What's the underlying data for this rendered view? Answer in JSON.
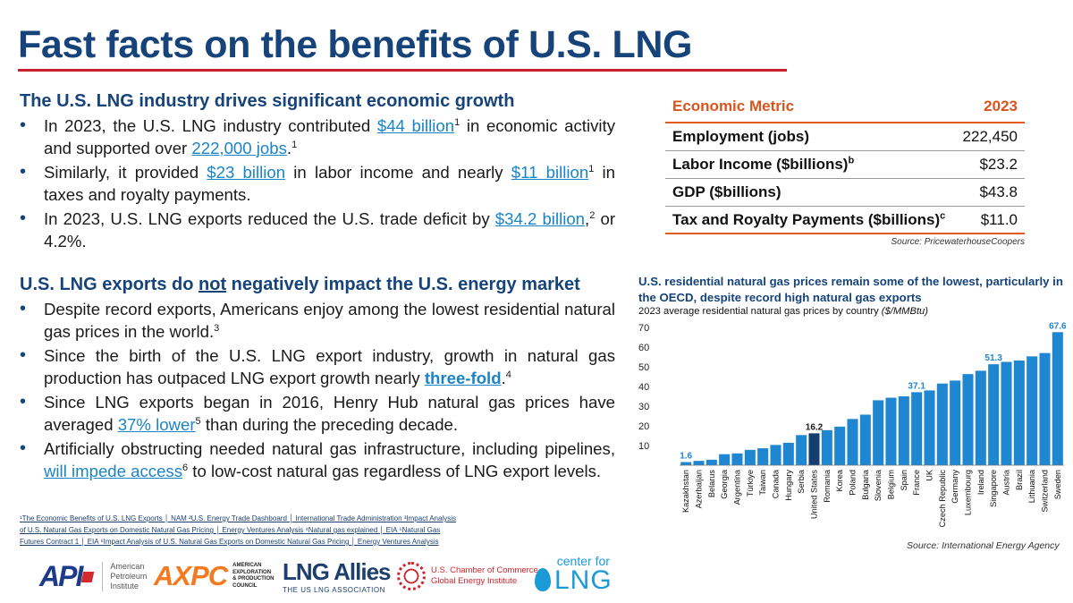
{
  "page": {
    "title": "Fast facts on the benefits of U.S. LNG"
  },
  "section1": {
    "heading": "The U.S. LNG industry drives significant economic growth",
    "bullets": [
      {
        "t1": "In 2023, the U.S. LNG industry contributed ",
        "l1": "$44 billion",
        "s1": "1",
        "t2": " in economic activity and supported over ",
        "l2": "222,000 jobs",
        "t3": ".",
        "s2": "1"
      },
      {
        "t1": "Similarly, it provided ",
        "l1": "$23 billion",
        "t2": " in labor income and nearly ",
        "l2": "$11 billion",
        "s1": "1",
        "t3": " in taxes and royalty payments."
      },
      {
        "t1": "In 2023, U.S. LNG exports reduced the U.S. trade deficit by ",
        "l1": "$34.2 billion",
        "t2": ",",
        "s1": "2",
        "t3": " or 4.2%."
      }
    ]
  },
  "section2": {
    "heading_pre": "U.S. LNG exports do ",
    "heading_em": "not",
    "heading_post": " negatively impact the U.S. energy market",
    "bullets": [
      {
        "t1": "Despite record exports, Americans enjoy among the lowest residential natural gas prices in the world.",
        "s1": "3"
      },
      {
        "t1": "Since the birth of the U.S. LNG export industry, growth in natural gas production has outpaced LNG export growth nearly ",
        "l1": "three-fold",
        "t2": ".",
        "s1": "4"
      },
      {
        "t1": "Since LNG exports began in 2016, Henry Hub natural gas prices have averaged ",
        "l1": "37% lower",
        "s1": "5",
        "t2": " than during the preceding decade."
      },
      {
        "t1": "Artificially obstructing needed natural gas infrastructure, including pipelines, ",
        "l1": "will impede access",
        "s1": "6",
        "t2": " to low-cost natural gas regardless of LNG export levels."
      }
    ]
  },
  "footnotes": {
    "line1": "¹The Economic Benefits of U.S. LNG Exports │ NAM ²U.S. Energy Trade Dashboard │ International Trade Administration ³Impact Analysis",
    "line2": "of U.S. Natural Gas Exports on Domestic Natural Gas Pricing │ Energy Ventures Analysis ⁴Natural gas explained │ EIA ⁵Natural Gas",
    "line3": "Futures Contract 1 │ EIA ⁶Impact Analysis of U.S. Natural Gas Exports on Domestic Natural Gas Pricing │ Energy Ventures Analysis"
  },
  "table": {
    "header_metric": "Economic Metric",
    "header_year": "2023",
    "rows": [
      {
        "metric": "Employment (jobs)",
        "sup": "",
        "value": "222,450"
      },
      {
        "metric": "Labor Income ($billions)",
        "sup": "b",
        "value": "$23.2"
      },
      {
        "metric": "GDP ($billions)",
        "sup": "",
        "value": "$43.8"
      },
      {
        "metric": "Tax and Royalty Payments ($billions)",
        "sup": "c",
        "value": "$11.0"
      }
    ],
    "source": "Source: PricewaterhouseCoopers"
  },
  "chart_data": {
    "type": "bar",
    "title": "U.S. residential natural gas prices remain some of the lowest, particularly in the OECD, despite record high natural gas exports",
    "subtitle_pre": "2023 average residential natural gas prices by country ",
    "subtitle_unit": "($/MMBtu)",
    "xlabel": "",
    "ylabel": "",
    "ylim": [
      0,
      70
    ],
    "yticks": [
      10,
      20,
      30,
      40,
      50,
      60,
      70
    ],
    "grid": false,
    "categories": [
      "Kazakhstan",
      "Azerbaijan",
      "Belarus",
      "Georgia",
      "Argentina",
      "Türkiye",
      "Taiwan",
      "Canada",
      "Hungary",
      "Serbia",
      "United States",
      "Romania",
      "Korea",
      "Poland",
      "Bulgaria",
      "Slovenia",
      "Belgium",
      "Spain",
      "France",
      "UK",
      "Czech Republic",
      "Germany",
      "Luxembourg",
      "Ireland",
      "Singapore",
      "Austria",
      "Brazil",
      "Lithuania",
      "Switzerland",
      "Sweden"
    ],
    "values": [
      1.6,
      2.2,
      2.8,
      5.6,
      6.0,
      7.8,
      8.6,
      10.3,
      11.4,
      15.3,
      16.2,
      17.8,
      19.6,
      23.5,
      25.7,
      33.0,
      34.3,
      35.0,
      37.1,
      38.0,
      41.5,
      43.0,
      46.3,
      48.0,
      51.3,
      52.5,
      53.2,
      55.3,
      57.0,
      67.6
    ],
    "data_labels": {
      "Kazakhstan": "1.6",
      "United States": "16.2",
      "France": "37.1",
      "Singapore": "51.3",
      "Sweden": "67.6"
    },
    "highlight": "United States",
    "colors": {
      "bar": "#1f86d1",
      "highlight": "#153d70",
      "label": "#1f86d1",
      "label_highlight": "#1a1a1a"
    },
    "source": "Source: International Energy Agency"
  },
  "logos": {
    "api_mark": "API",
    "api_text": [
      "American",
      "Petroleum",
      "Institute"
    ],
    "axpc_mark": "AXPC",
    "axpc_text": [
      "AMERICAN",
      "EXPLORATION",
      "& PRODUCTION",
      "COUNCIL"
    ],
    "lnga_mark": "LNG Allies",
    "lnga_sub": "THE US LNG ASSOCIATION",
    "uscc_text": [
      "U.S. Chamber of Commerce",
      "Global Energy Institute"
    ],
    "clng_small": "center for",
    "clng_big": "LNG"
  },
  "colors": {
    "title": "#15437a",
    "rule": "#c8202f",
    "link": "#1a84c7",
    "table_accent": "#e25b1f"
  }
}
